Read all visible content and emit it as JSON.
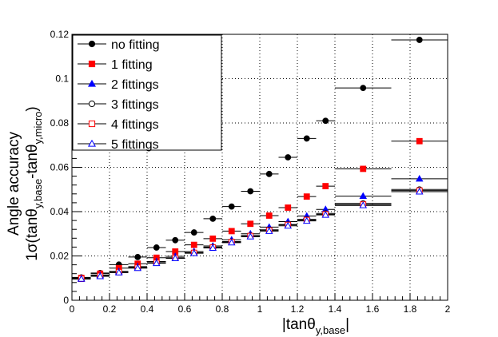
{
  "chart_data": {
    "type": "scatter",
    "xlabel": {
      "main": "|tanθ",
      "sub": "y,base",
      "end": "|"
    },
    "ylabel": {
      "line1": "Angle accuracy",
      "line2_main": "1σ(tanθ",
      "line2_sub1": "y,base",
      "line2_mid": "-tanθ",
      "line2_sub2": "y,micro",
      "line2_end": ")"
    },
    "xlim": [
      0,
      2
    ],
    "ylim": [
      0,
      0.12
    ],
    "grid": true,
    "legend_position": "top-left",
    "x_tick_labels": [
      "0",
      "0.2",
      "0.4",
      "0.6",
      "0.8",
      "1",
      "1.2",
      "1.4",
      "1.6",
      "1.8",
      "2"
    ],
    "y_tick_labels": [
      "0",
      "0.02",
      "0.04",
      "0.06",
      "0.08",
      "0.1",
      "0.12"
    ],
    "x": [
      0.05,
      0.15,
      0.25,
      0.35,
      0.45,
      0.55,
      0.65,
      0.75,
      0.85,
      0.95,
      1.05,
      1.15,
      1.25,
      1.35,
      1.55,
      1.85
    ],
    "x_err": [
      0.05,
      0.05,
      0.05,
      0.05,
      0.05,
      0.05,
      0.05,
      0.05,
      0.05,
      0.05,
      0.05,
      0.05,
      0.05,
      0.05,
      0.15,
      0.15
    ],
    "series": [
      {
        "name": "no fitting",
        "marker": "filled-circle",
        "color": "#000000",
        "values": [
          0.0103,
          0.0123,
          0.0161,
          0.0195,
          0.0238,
          0.0271,
          0.0306,
          0.0368,
          0.0423,
          0.0492,
          0.057,
          0.0645,
          0.073,
          0.081,
          0.0958,
          0.1175
        ]
      },
      {
        "name": "1 fitting",
        "marker": "filled-square",
        "color": "#ff0000",
        "values": [
          0.0101,
          0.012,
          0.0145,
          0.0165,
          0.0192,
          0.022,
          0.025,
          0.0278,
          0.0312,
          0.0345,
          0.0382,
          0.0418,
          0.0468,
          0.0515,
          0.0593,
          0.0718
        ]
      },
      {
        "name": "2 fittings",
        "marker": "filled-triangle",
        "color": "#0000ff",
        "values": [
          0.0098,
          0.0113,
          0.013,
          0.0152,
          0.0175,
          0.0198,
          0.022,
          0.0245,
          0.0273,
          0.03,
          0.033,
          0.0355,
          0.038,
          0.041,
          0.047,
          0.0548
        ]
      },
      {
        "name": "3 fittings",
        "marker": "open-circle",
        "color": "#000000",
        "values": [
          0.0097,
          0.011,
          0.0127,
          0.0148,
          0.017,
          0.0192,
          0.0215,
          0.024,
          0.0265,
          0.0292,
          0.0318,
          0.0342,
          0.0365,
          0.0392,
          0.0437,
          0.05
        ]
      },
      {
        "name": "4 fittings",
        "marker": "open-square",
        "color": "#ff0000",
        "values": [
          0.0097,
          0.011,
          0.0127,
          0.0147,
          0.0169,
          0.0191,
          0.0214,
          0.0238,
          0.0263,
          0.029,
          0.0315,
          0.034,
          0.0362,
          0.0388,
          0.0432,
          0.0495
        ]
      },
      {
        "name": "5 fittings",
        "marker": "open-triangle",
        "color": "#0000ff",
        "values": [
          0.0096,
          0.0108,
          0.0125,
          0.0145,
          0.0167,
          0.0189,
          0.0212,
          0.0236,
          0.026,
          0.0287,
          0.0312,
          0.0336,
          0.0358,
          0.0385,
          0.0428,
          0.049
        ]
      }
    ]
  }
}
